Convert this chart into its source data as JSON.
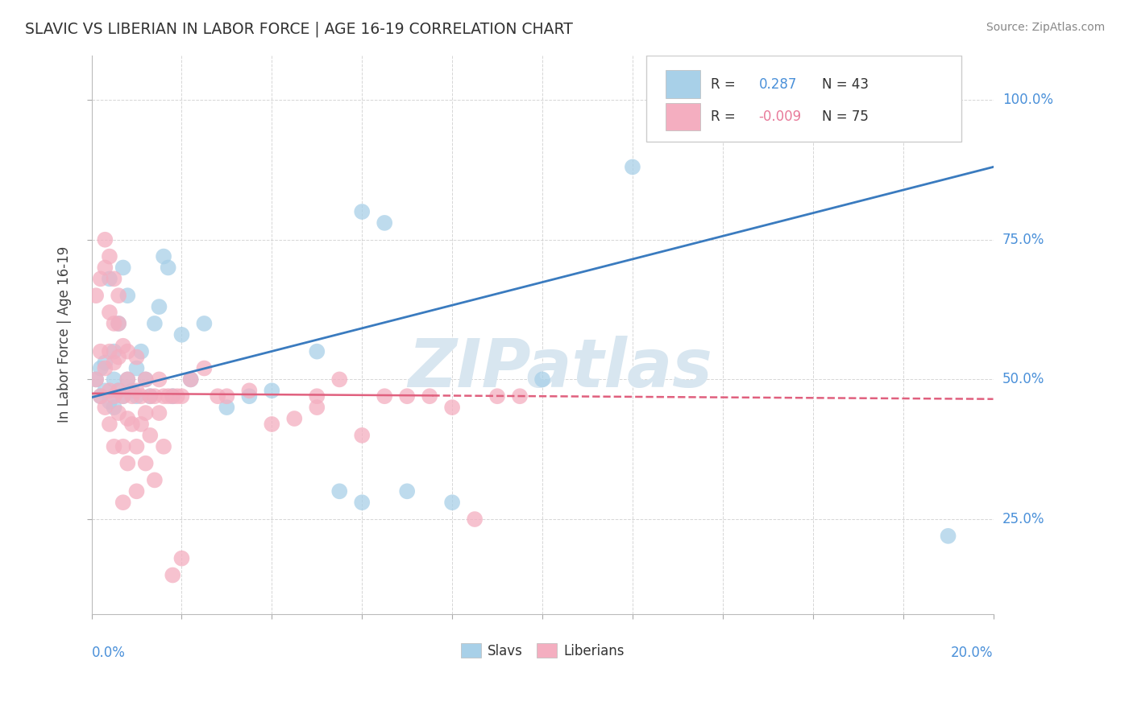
{
  "title": "SLAVIC VS LIBERIAN IN LABOR FORCE | AGE 16-19 CORRELATION CHART",
  "source": "Source: ZipAtlas.com",
  "ylabel": "In Labor Force | Age 16-19",
  "ylabel_ticks": [
    "25.0%",
    "50.0%",
    "75.0%",
    "100.0%"
  ],
  "ylabel_tick_vals": [
    0.25,
    0.5,
    0.75,
    1.0
  ],
  "xlim": [
    0.0,
    0.2
  ],
  "ylim": [
    0.08,
    1.08
  ],
  "r_slavic": 0.287,
  "n_slavic": 43,
  "r_liberian": -0.009,
  "n_liberian": 75,
  "slavic_color": "#a8d0e8",
  "liberian_color": "#f4aec0",
  "slavic_line_color": "#3a7bbf",
  "liberian_line_color": "#e0607e",
  "watermark_color": "#d8e6f0",
  "slavic_x": [
    0.001,
    0.002,
    0.002,
    0.003,
    0.003,
    0.004,
    0.004,
    0.005,
    0.005,
    0.005,
    0.006,
    0.006,
    0.007,
    0.007,
    0.008,
    0.008,
    0.009,
    0.01,
    0.01,
    0.011,
    0.012,
    0.013,
    0.014,
    0.015,
    0.016,
    0.017,
    0.018,
    0.02,
    0.022,
    0.025,
    0.03,
    0.035,
    0.04,
    0.05,
    0.055,
    0.06,
    0.07,
    0.08,
    0.1,
    0.12,
    0.06,
    0.065,
    0.19
  ],
  "slavic_y": [
    0.5,
    0.47,
    0.52,
    0.48,
    0.53,
    0.46,
    0.68,
    0.45,
    0.5,
    0.55,
    0.48,
    0.6,
    0.47,
    0.7,
    0.5,
    0.65,
    0.48,
    0.52,
    0.47,
    0.55,
    0.5,
    0.47,
    0.6,
    0.63,
    0.72,
    0.7,
    0.47,
    0.58,
    0.5,
    0.6,
    0.45,
    0.47,
    0.48,
    0.55,
    0.3,
    0.28,
    0.3,
    0.28,
    0.5,
    0.88,
    0.8,
    0.78,
    0.22
  ],
  "liberian_x": [
    0.001,
    0.001,
    0.002,
    0.002,
    0.002,
    0.003,
    0.003,
    0.003,
    0.004,
    0.004,
    0.004,
    0.004,
    0.005,
    0.005,
    0.005,
    0.005,
    0.006,
    0.006,
    0.006,
    0.006,
    0.007,
    0.007,
    0.007,
    0.008,
    0.008,
    0.008,
    0.009,
    0.009,
    0.01,
    0.01,
    0.01,
    0.011,
    0.011,
    0.012,
    0.012,
    0.013,
    0.013,
    0.014,
    0.015,
    0.015,
    0.016,
    0.017,
    0.018,
    0.019,
    0.02,
    0.022,
    0.025,
    0.028,
    0.03,
    0.035,
    0.04,
    0.045,
    0.05,
    0.055,
    0.06,
    0.065,
    0.07,
    0.075,
    0.08,
    0.09,
    0.003,
    0.004,
    0.005,
    0.006,
    0.007,
    0.008,
    0.01,
    0.012,
    0.014,
    0.016,
    0.018,
    0.02,
    0.05,
    0.085,
    0.095
  ],
  "liberian_y": [
    0.5,
    0.65,
    0.47,
    0.55,
    0.68,
    0.45,
    0.52,
    0.7,
    0.48,
    0.55,
    0.62,
    0.42,
    0.47,
    0.53,
    0.6,
    0.38,
    0.48,
    0.54,
    0.44,
    0.6,
    0.47,
    0.56,
    0.38,
    0.5,
    0.43,
    0.55,
    0.47,
    0.42,
    0.48,
    0.54,
    0.38,
    0.47,
    0.42,
    0.5,
    0.44,
    0.47,
    0.4,
    0.47,
    0.5,
    0.44,
    0.47,
    0.47,
    0.47,
    0.47,
    0.47,
    0.5,
    0.52,
    0.47,
    0.47,
    0.48,
    0.42,
    0.43,
    0.47,
    0.5,
    0.4,
    0.47,
    0.47,
    0.47,
    0.45,
    0.47,
    0.75,
    0.72,
    0.68,
    0.65,
    0.28,
    0.35,
    0.3,
    0.35,
    0.32,
    0.38,
    0.15,
    0.18,
    0.45,
    0.25,
    0.47
  ]
}
